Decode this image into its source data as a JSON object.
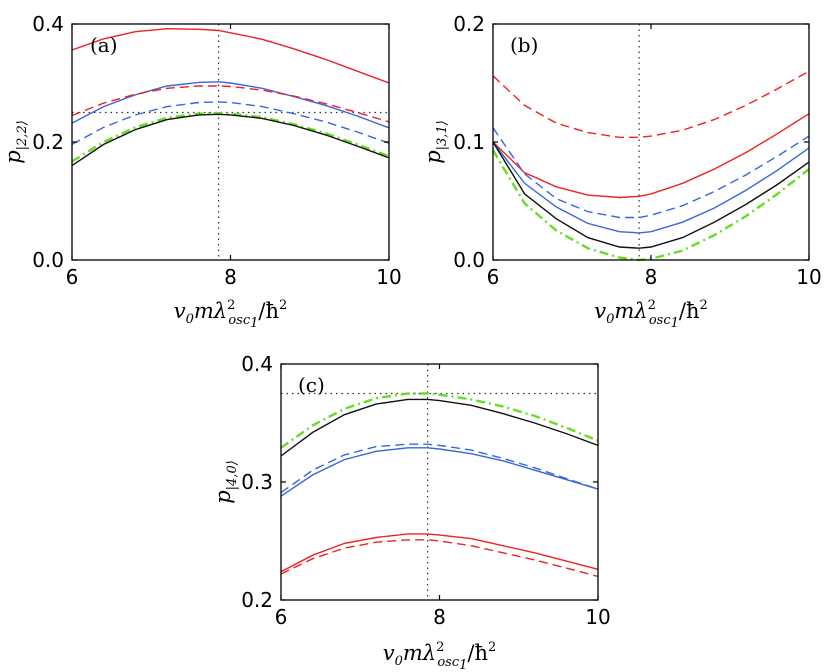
{
  "chart_data": [
    {
      "type": "line",
      "panel_label": "(a)",
      "xlabel": {
        "base": "v",
        "sub0": "0",
        "mid": "mλ",
        "sup": "2",
        "sub": "osc",
        "subsub": "1",
        "tail": "/ħ",
        "tailsup": "2"
      },
      "ylabel": {
        "base": "p",
        "sub": "|2,2⟩"
      },
      "xlim": [
        6,
        10
      ],
      "ylim": [
        0,
        0.4
      ],
      "xticks": [
        "6",
        "8",
        "10"
      ],
      "yticks": [
        "0.0",
        "0.2",
        "0.4"
      ],
      "xtick_values": [
        6,
        8,
        10
      ],
      "ytick_values": [
        0,
        0.2,
        0.4
      ],
      "vline": 7.85,
      "hline": 0.25,
      "x": [
        6,
        6.4,
        6.8,
        7.2,
        7.6,
        7.85,
        8.0,
        8.4,
        8.8,
        9.2,
        9.6,
        10
      ],
      "series": [
        {
          "name": "red solid",
          "color": "#ee2222",
          "dash": "solid",
          "values": [
            0.356,
            0.375,
            0.387,
            0.392,
            0.391,
            0.389,
            0.385,
            0.374,
            0.358,
            0.34,
            0.32,
            0.3
          ]
        },
        {
          "name": "blue solid",
          "color": "#3a66dd",
          "dash": "solid",
          "values": [
            0.232,
            0.26,
            0.28,
            0.295,
            0.301,
            0.302,
            0.3,
            0.291,
            0.277,
            0.262,
            0.244,
            0.224
          ]
        },
        {
          "name": "red dashed",
          "color": "#ee2222",
          "dash": "dashed",
          "values": [
            0.245,
            0.266,
            0.281,
            0.291,
            0.295,
            0.295,
            0.294,
            0.288,
            0.278,
            0.265,
            0.25,
            0.234
          ]
        },
        {
          "name": "blue dashed",
          "color": "#3a66dd",
          "dash": "dashed",
          "values": [
            0.196,
            0.225,
            0.246,
            0.26,
            0.267,
            0.268,
            0.267,
            0.26,
            0.248,
            0.234,
            0.217,
            0.198
          ]
        },
        {
          "name": "green dash-dot",
          "color": "#66dd22",
          "dash": "dashdot",
          "values": [
            0.167,
            0.2,
            0.225,
            0.241,
            0.248,
            0.249,
            0.248,
            0.242,
            0.23,
            0.215,
            0.196,
            0.176
          ]
        },
        {
          "name": "black solid",
          "color": "#111111",
          "dash": "solid",
          "values": [
            0.16,
            0.196,
            0.221,
            0.238,
            0.246,
            0.247,
            0.246,
            0.24,
            0.228,
            0.212,
            0.193,
            0.173
          ]
        }
      ]
    },
    {
      "type": "line",
      "panel_label": "(b)",
      "xlabel": {
        "base": "v",
        "sub0": "0",
        "mid": "mλ",
        "sup": "2",
        "sub": "osc",
        "subsub": "1",
        "tail": "/ħ",
        "tailsup": "2"
      },
      "ylabel": {
        "base": "p",
        "sub": "|3,1⟩"
      },
      "xlim": [
        6,
        10
      ],
      "ylim": [
        0,
        0.2
      ],
      "xticks": [
        "6",
        "8",
        "10"
      ],
      "yticks": [
        "0.0",
        "0.1",
        "0.2"
      ],
      "xtick_values": [
        6,
        8,
        10
      ],
      "ytick_values": [
        0,
        0.1,
        0.2
      ],
      "vline": 7.85,
      "hline": null,
      "x": [
        6,
        6.4,
        6.8,
        7.2,
        7.6,
        7.85,
        8.0,
        8.4,
        8.8,
        9.2,
        9.6,
        10
      ],
      "series": [
        {
          "name": "red dashed",
          "color": "#ee2222",
          "dash": "dashed",
          "values": [
            0.156,
            0.131,
            0.116,
            0.108,
            0.104,
            0.104,
            0.105,
            0.11,
            0.119,
            0.131,
            0.145,
            0.16
          ]
        },
        {
          "name": "red solid",
          "color": "#ee2222",
          "dash": "solid",
          "values": [
            0.1,
            0.074,
            0.062,
            0.055,
            0.053,
            0.054,
            0.056,
            0.065,
            0.077,
            0.091,
            0.107,
            0.124
          ]
        },
        {
          "name": "blue dashed",
          "color": "#3a66dd",
          "dash": "dashed",
          "values": [
            0.112,
            0.073,
            0.052,
            0.041,
            0.036,
            0.036,
            0.038,
            0.046,
            0.058,
            0.072,
            0.088,
            0.105
          ]
        },
        {
          "name": "blue solid",
          "color": "#3a66dd",
          "dash": "solid",
          "values": [
            0.1,
            0.065,
            0.045,
            0.031,
            0.024,
            0.023,
            0.024,
            0.032,
            0.044,
            0.059,
            0.076,
            0.095
          ]
        },
        {
          "name": "black solid",
          "color": "#111111",
          "dash": "solid",
          "values": [
            0.1,
            0.056,
            0.035,
            0.019,
            0.011,
            0.01,
            0.011,
            0.019,
            0.032,
            0.047,
            0.064,
            0.083
          ]
        },
        {
          "name": "green dash-dot",
          "color": "#66dd22",
          "dash": "dashdot",
          "values": [
            0.093,
            0.048,
            0.025,
            0.01,
            0.002,
            0.0,
            0.001,
            0.008,
            0.021,
            0.037,
            0.056,
            0.077
          ]
        }
      ]
    },
    {
      "type": "line",
      "panel_label": "(c)",
      "xlabel": {
        "base": "v",
        "sub0": "0",
        "mid": "mλ",
        "sup": "2",
        "sub": "osc",
        "subsub": "1",
        "tail": "/ħ",
        "tailsup": "2"
      },
      "ylabel": {
        "base": "p",
        "sub": "|4,0⟩"
      },
      "xlim": [
        6,
        10
      ],
      "ylim": [
        0.2,
        0.4
      ],
      "xticks": [
        "6",
        "8",
        "10"
      ],
      "yticks": [
        "0.2",
        "0.3",
        "0.4"
      ],
      "xtick_values": [
        6,
        8,
        10
      ],
      "ytick_values": [
        0.2,
        0.3,
        0.4
      ],
      "vline": 7.85,
      "hline": 0.375,
      "x": [
        6,
        6.4,
        6.8,
        7.2,
        7.6,
        7.85,
        8.0,
        8.4,
        8.8,
        9.2,
        9.6,
        10
      ],
      "series": [
        {
          "name": "green dash-dot",
          "color": "#66dd22",
          "dash": "dashdot",
          "values": [
            0.329,
            0.348,
            0.362,
            0.371,
            0.375,
            0.375,
            0.374,
            0.37,
            0.364,
            0.356,
            0.346,
            0.335
          ]
        },
        {
          "name": "black solid",
          "color": "#111111",
          "dash": "solid",
          "values": [
            0.322,
            0.342,
            0.357,
            0.366,
            0.37,
            0.37,
            0.369,
            0.365,
            0.358,
            0.35,
            0.341,
            0.331
          ]
        },
        {
          "name": "blue dashed",
          "color": "#3a66dd",
          "dash": "dashed",
          "values": [
            0.291,
            0.31,
            0.323,
            0.33,
            0.332,
            0.332,
            0.331,
            0.327,
            0.32,
            0.312,
            0.303,
            0.294
          ]
        },
        {
          "name": "blue solid",
          "color": "#3a66dd",
          "dash": "solid",
          "values": [
            0.288,
            0.306,
            0.319,
            0.326,
            0.329,
            0.329,
            0.328,
            0.324,
            0.318,
            0.31,
            0.302,
            0.294
          ]
        },
        {
          "name": "red solid",
          "color": "#ee2222",
          "dash": "solid",
          "values": [
            0.224,
            0.238,
            0.248,
            0.253,
            0.256,
            0.256,
            0.255,
            0.252,
            0.246,
            0.24,
            0.233,
            0.226
          ]
        },
        {
          "name": "red dashed",
          "color": "#ee2222",
          "dash": "dashed",
          "values": [
            0.222,
            0.235,
            0.244,
            0.249,
            0.251,
            0.251,
            0.25,
            0.246,
            0.24,
            0.234,
            0.227,
            0.22
          ]
        }
      ]
    }
  ]
}
